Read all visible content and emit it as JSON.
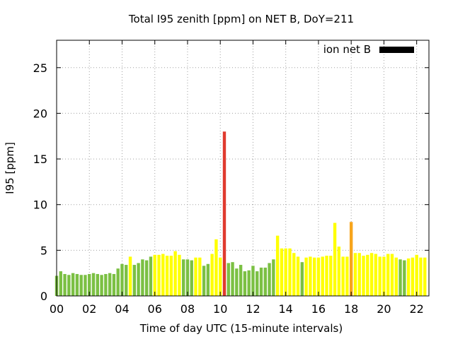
{
  "chart_data": {
    "type": "bar",
    "title": "Total I95 zenith [ppm] on NET B, DoY=211",
    "xlabel": "Time of day UTC (15-minute intervals)",
    "ylabel": "I95 [ppm]",
    "xlim": [
      0,
      22.75
    ],
    "ylim": [
      0,
      28
    ],
    "xticks": [
      0,
      2,
      4,
      6,
      8,
      10,
      12,
      14,
      16,
      18,
      20,
      22
    ],
    "xtick_labels": [
      "00",
      "02",
      "04",
      "06",
      "08",
      "10",
      "12",
      "14",
      "16",
      "18",
      "20",
      "22"
    ],
    "yticks": [
      0,
      5,
      10,
      15,
      20,
      25
    ],
    "ytick_labels": [
      "0",
      "5",
      "10",
      "15",
      "20",
      "25"
    ],
    "grid": true,
    "legend": {
      "label": "ion net B",
      "color": "#000000",
      "placement": "top-right"
    },
    "bar_interval_hours": 0.25,
    "color_key": {
      "g": "#7bc043",
      "y": "#ffff00",
      "o": "#f7a51c",
      "r": "#e03a2e"
    },
    "bars": [
      {
        "x": 0.0,
        "value": 2.2,
        "color": "g"
      },
      {
        "x": 0.25,
        "value": 2.7,
        "color": "g"
      },
      {
        "x": 0.5,
        "value": 2.4,
        "color": "g"
      },
      {
        "x": 0.75,
        "value": 2.3,
        "color": "g"
      },
      {
        "x": 1.0,
        "value": 2.5,
        "color": "g"
      },
      {
        "x": 1.25,
        "value": 2.4,
        "color": "g"
      },
      {
        "x": 1.5,
        "value": 2.3,
        "color": "g"
      },
      {
        "x": 1.75,
        "value": 2.3,
        "color": "g"
      },
      {
        "x": 2.0,
        "value": 2.4,
        "color": "g"
      },
      {
        "x": 2.25,
        "value": 2.5,
        "color": "g"
      },
      {
        "x": 2.5,
        "value": 2.4,
        "color": "g"
      },
      {
        "x": 2.75,
        "value": 2.3,
        "color": "g"
      },
      {
        "x": 3.0,
        "value": 2.4,
        "color": "g"
      },
      {
        "x": 3.25,
        "value": 2.5,
        "color": "g"
      },
      {
        "x": 3.5,
        "value": 2.4,
        "color": "g"
      },
      {
        "x": 3.75,
        "value": 3.0,
        "color": "g"
      },
      {
        "x": 4.0,
        "value": 3.5,
        "color": "g"
      },
      {
        "x": 4.25,
        "value": 3.4,
        "color": "g"
      },
      {
        "x": 4.5,
        "value": 4.3,
        "color": "y"
      },
      {
        "x": 4.75,
        "value": 3.4,
        "color": "g"
      },
      {
        "x": 5.0,
        "value": 3.6,
        "color": "g"
      },
      {
        "x": 5.25,
        "value": 4.0,
        "color": "g"
      },
      {
        "x": 5.5,
        "value": 3.9,
        "color": "g"
      },
      {
        "x": 5.75,
        "value": 4.3,
        "color": "g"
      },
      {
        "x": 6.0,
        "value": 4.5,
        "color": "y"
      },
      {
        "x": 6.25,
        "value": 4.5,
        "color": "y"
      },
      {
        "x": 6.5,
        "value": 4.6,
        "color": "y"
      },
      {
        "x": 6.75,
        "value": 4.4,
        "color": "y"
      },
      {
        "x": 7.0,
        "value": 4.4,
        "color": "y"
      },
      {
        "x": 7.25,
        "value": 4.9,
        "color": "y"
      },
      {
        "x": 7.5,
        "value": 4.5,
        "color": "y"
      },
      {
        "x": 7.75,
        "value": 4.0,
        "color": "g"
      },
      {
        "x": 8.0,
        "value": 4.0,
        "color": "g"
      },
      {
        "x": 8.25,
        "value": 3.9,
        "color": "g"
      },
      {
        "x": 8.5,
        "value": 4.2,
        "color": "y"
      },
      {
        "x": 8.75,
        "value": 4.2,
        "color": "y"
      },
      {
        "x": 9.0,
        "value": 3.3,
        "color": "g"
      },
      {
        "x": 9.25,
        "value": 3.5,
        "color": "g"
      },
      {
        "x": 9.5,
        "value": 4.6,
        "color": "y"
      },
      {
        "x": 9.75,
        "value": 6.2,
        "color": "y"
      },
      {
        "x": 10.0,
        "value": 4.2,
        "color": "y"
      },
      {
        "x": 10.25,
        "value": 18.0,
        "color": "r"
      },
      {
        "x": 10.5,
        "value": 3.6,
        "color": "g"
      },
      {
        "x": 10.75,
        "value": 3.7,
        "color": "g"
      },
      {
        "x": 11.0,
        "value": 3.0,
        "color": "g"
      },
      {
        "x": 11.25,
        "value": 3.4,
        "color": "g"
      },
      {
        "x": 11.5,
        "value": 2.7,
        "color": "g"
      },
      {
        "x": 11.75,
        "value": 2.8,
        "color": "g"
      },
      {
        "x": 12.0,
        "value": 3.3,
        "color": "g"
      },
      {
        "x": 12.25,
        "value": 2.7,
        "color": "g"
      },
      {
        "x": 12.5,
        "value": 3.1,
        "color": "g"
      },
      {
        "x": 12.75,
        "value": 3.1,
        "color": "g"
      },
      {
        "x": 13.0,
        "value": 3.6,
        "color": "g"
      },
      {
        "x": 13.25,
        "value": 4.0,
        "color": "g"
      },
      {
        "x": 13.5,
        "value": 6.6,
        "color": "y"
      },
      {
        "x": 13.75,
        "value": 5.2,
        "color": "y"
      },
      {
        "x": 14.0,
        "value": 5.2,
        "color": "y"
      },
      {
        "x": 14.25,
        "value": 5.2,
        "color": "y"
      },
      {
        "x": 14.5,
        "value": 4.7,
        "color": "y"
      },
      {
        "x": 14.75,
        "value": 4.3,
        "color": "y"
      },
      {
        "x": 15.0,
        "value": 3.7,
        "color": "g"
      },
      {
        "x": 15.25,
        "value": 4.2,
        "color": "y"
      },
      {
        "x": 15.5,
        "value": 4.3,
        "color": "y"
      },
      {
        "x": 15.75,
        "value": 4.2,
        "color": "y"
      },
      {
        "x": 16.0,
        "value": 4.2,
        "color": "y"
      },
      {
        "x": 16.25,
        "value": 4.3,
        "color": "y"
      },
      {
        "x": 16.5,
        "value": 4.4,
        "color": "y"
      },
      {
        "x": 16.75,
        "value": 4.4,
        "color": "y"
      },
      {
        "x": 17.0,
        "value": 8.0,
        "color": "y"
      },
      {
        "x": 17.25,
        "value": 5.4,
        "color": "y"
      },
      {
        "x": 17.5,
        "value": 4.3,
        "color": "y"
      },
      {
        "x": 17.75,
        "value": 4.3,
        "color": "y"
      },
      {
        "x": 18.0,
        "value": 8.1,
        "color": "o"
      },
      {
        "x": 18.25,
        "value": 4.7,
        "color": "y"
      },
      {
        "x": 18.5,
        "value": 4.7,
        "color": "y"
      },
      {
        "x": 18.75,
        "value": 4.4,
        "color": "y"
      },
      {
        "x": 19.0,
        "value": 4.5,
        "color": "y"
      },
      {
        "x": 19.25,
        "value": 4.7,
        "color": "y"
      },
      {
        "x": 19.5,
        "value": 4.6,
        "color": "y"
      },
      {
        "x": 19.75,
        "value": 4.3,
        "color": "y"
      },
      {
        "x": 20.0,
        "value": 4.3,
        "color": "y"
      },
      {
        "x": 20.25,
        "value": 4.6,
        "color": "y"
      },
      {
        "x": 20.5,
        "value": 4.6,
        "color": "y"
      },
      {
        "x": 20.75,
        "value": 4.2,
        "color": "y"
      },
      {
        "x": 21.0,
        "value": 4.0,
        "color": "g"
      },
      {
        "x": 21.25,
        "value": 3.9,
        "color": "g"
      },
      {
        "x": 21.5,
        "value": 4.1,
        "color": "y"
      },
      {
        "x": 21.75,
        "value": 4.2,
        "color": "y"
      },
      {
        "x": 22.0,
        "value": 4.5,
        "color": "y"
      },
      {
        "x": 22.25,
        "value": 4.2,
        "color": "y"
      },
      {
        "x": 22.5,
        "value": 4.2,
        "color": "y"
      }
    ]
  }
}
